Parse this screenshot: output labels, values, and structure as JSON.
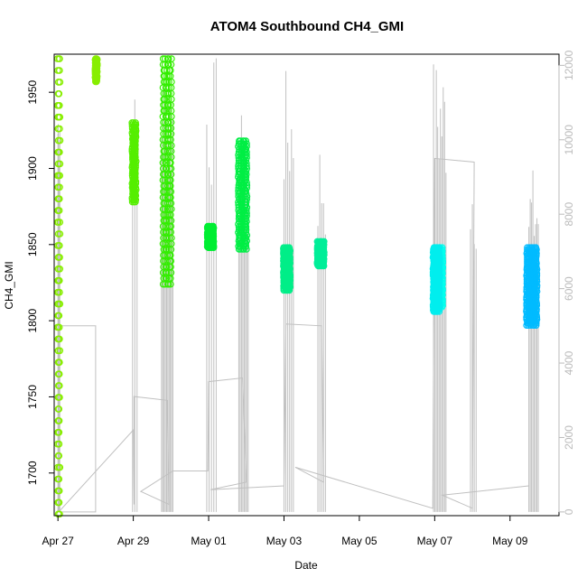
{
  "chart_data": {
    "type": "scatter",
    "title": "ATOM4 Southbound CH4_GMI",
    "xlabel": "Date",
    "ylabel": "CH4_GMI",
    "x_start": "2016-04-27",
    "xlim_days": [
      -0.1,
      13.3
    ],
    "ylim": [
      1672,
      1975
    ],
    "y2lim": [
      -100,
      12300
    ],
    "x_ticks": [
      {
        "day": 0,
        "label": "Apr 27"
      },
      {
        "day": 2,
        "label": "Apr 29"
      },
      {
        "day": 4,
        "label": "May 01"
      },
      {
        "day": 6,
        "label": "May 03"
      },
      {
        "day": 8,
        "label": "May 05"
      },
      {
        "day": 10,
        "label": "May 07"
      },
      {
        "day": 12,
        "label": "May 09"
      }
    ],
    "y_ticks": [
      1700,
      1750,
      1800,
      1850,
      1900,
      1950
    ],
    "y2_ticks": [
      0,
      2000,
      4000,
      6000,
      8000,
      10000,
      12000
    ],
    "y2_color": "#bbbbbb",
    "altitude_line_color": "#c0c0c0",
    "series": [
      {
        "color": "#88ee00",
        "days": [
          0.0,
          0.02,
          0.04
        ],
        "min": 1673,
        "max": 1972
      },
      {
        "color": "#88ee00",
        "days": [
          1.0,
          1.03
        ],
        "min": 1957,
        "max": 1972
      },
      {
        "color": "#55ee00",
        "days": [
          1.98,
          2.02,
          2.06
        ],
        "min": 1878,
        "max": 1930
      },
      {
        "color": "#33ee00",
        "days": [
          2.8,
          2.85,
          2.9,
          2.95,
          3.0
        ],
        "min": 1824,
        "max": 1972
      },
      {
        "color": "#00ee33",
        "days": [
          3.98,
          4.03,
          4.08,
          4.12
        ],
        "min": 1848,
        "max": 1862
      },
      {
        "color": "#00ee44",
        "days": [
          4.8,
          4.85,
          4.9,
          4.95,
          5.0
        ],
        "min": 1847,
        "max": 1918
      },
      {
        "color": "#00ee88",
        "days": [
          6.0,
          6.05,
          6.1,
          6.15
        ],
        "min": 1820,
        "max": 1848
      },
      {
        "color": "#00ee99",
        "days": [
          6.9,
          6.95,
          7.0,
          7.05
        ],
        "min": 1836,
        "max": 1852
      },
      {
        "color": "#00ffee",
        "days": [
          10.0,
          10.05,
          10.1,
          10.15,
          10.2
        ],
        "min": 1809,
        "max": 1848
      },
      {
        "color": "#00eeee",
        "days": [
          9.97,
          10.01,
          10.04,
          10.08,
          10.12
        ],
        "min": 1806,
        "max": 1848
      },
      {
        "color": "#00bbff",
        "days": [
          12.45,
          12.5,
          12.55,
          12.6,
          12.65,
          12.7
        ],
        "min": 1797,
        "max": 1848
      }
    ],
    "altitude_profiles": [
      {
        "start": 0.0,
        "end": 0.05,
        "n": 6,
        "max": 12000
      },
      {
        "start": 1.98,
        "end": 2.1,
        "n": 3,
        "max": 11500
      },
      {
        "start": 2.75,
        "end": 3.05,
        "n": 10,
        "max": 12200
      },
      {
        "start": 3.95,
        "end": 4.2,
        "n": 5,
        "max": 12300
      },
      {
        "start": 4.8,
        "end": 5.05,
        "n": 8,
        "max": 10800
      },
      {
        "start": 6.0,
        "end": 6.25,
        "n": 6,
        "max": 11900
      },
      {
        "start": 6.9,
        "end": 7.1,
        "n": 5,
        "max": 10300
      },
      {
        "start": 9.97,
        "end": 10.3,
        "n": 10,
        "max": 12300
      },
      {
        "start": 10.95,
        "end": 11.1,
        "n": 4,
        "max": 9900
      },
      {
        "start": 12.5,
        "end": 12.75,
        "n": 8,
        "max": 9300
      }
    ],
    "altitude_connectors": [
      [
        0.02,
        400
      ],
      [
        0.02,
        5000
      ],
      [
        1.0,
        5000
      ],
      [
        1.0,
        0
      ],
      [
        0.02,
        0
      ],
      [
        2.0,
        2200
      ],
      [
        2.02,
        200
      ],
      [
        2.02,
        3100
      ],
      [
        2.9,
        3000
      ],
      [
        2.95,
        200
      ],
      [
        2.2,
        550
      ],
      [
        3.05,
        1100
      ],
      [
        3.98,
        1100
      ],
      [
        4.0,
        3500
      ],
      [
        4.9,
        3600
      ],
      [
        5.0,
        800
      ],
      [
        4.05,
        600
      ],
      [
        6.0,
        700
      ],
      [
        6.05,
        5050
      ],
      [
        7.0,
        5000
      ],
      [
        7.05,
        800
      ],
      [
        6.3,
        1200
      ],
      [
        9.95,
        100
      ],
      [
        10.0,
        9500
      ],
      [
        11.05,
        9400
      ],
      [
        11.0,
        100
      ],
      [
        10.2,
        450
      ],
      [
        12.5,
        700
      ]
    ]
  }
}
